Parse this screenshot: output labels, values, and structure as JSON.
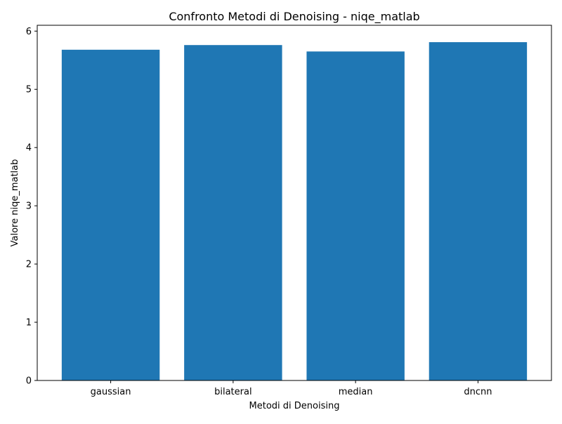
{
  "chart_data": {
    "type": "bar",
    "title": "Confronto Metodi di Denoising - niqe_matlab",
    "xlabel": "Metodi di Denoising",
    "ylabel": "Valore niqe_matlab",
    "categories": [
      "gaussian",
      "bilateral",
      "median",
      "dncnn"
    ],
    "values": [
      5.68,
      5.76,
      5.65,
      5.81
    ],
    "ylim": [
      0,
      6.1
    ],
    "yticks": [
      0,
      1,
      2,
      3,
      4,
      5,
      6
    ],
    "bar_color": "#1f77b4",
    "grid": false,
    "legend": "none"
  }
}
